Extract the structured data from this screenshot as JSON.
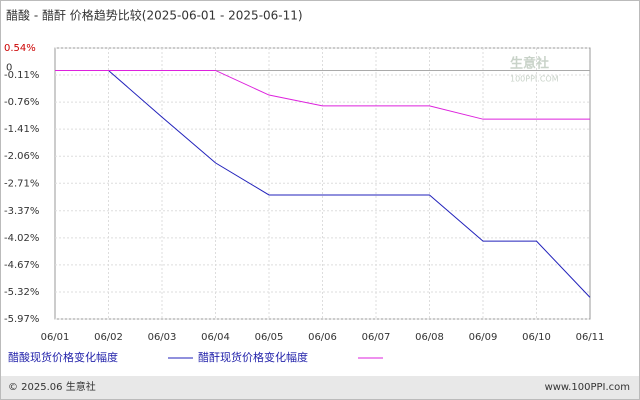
{
  "chart_data": {
    "type": "line",
    "title": "醋酸 - 醋酐 价格趋势比较(2025-06-01 - 2025-06-11)",
    "categories": [
      "06/01",
      "06/02",
      "06/03",
      "06/04",
      "06/05",
      "06/06",
      "06/07",
      "06/08",
      "06/09",
      "06/10",
      "06/11"
    ],
    "series": [
      {
        "name": "醋酸现货价格变化幅度",
        "color": "#2222bb",
        "values": [
          0,
          0,
          -1.12,
          -2.22,
          -2.99,
          -2.99,
          -2.99,
          -2.99,
          -4.1,
          -4.1,
          -5.45
        ]
      },
      {
        "name": "醋酐现货价格变化幅度",
        "color": "#dd22dd",
        "values": [
          0,
          0,
          0,
          0,
          -0.59,
          -0.85,
          -0.85,
          -0.85,
          -1.17,
          -1.17,
          -1.17
        ]
      }
    ],
    "ylim": [
      -5.97,
      0.54
    ],
    "yticks": [
      {
        "value": 0.54,
        "label": "0.54%"
      },
      0,
      {
        "value": -0.11,
        "label": "-0.11%"
      },
      {
        "value": -0.76,
        "label": "-0.76%"
      },
      {
        "value": -1.41,
        "label": "-1.41%"
      },
      {
        "value": -2.06,
        "label": "-2.06%"
      },
      {
        "value": -2.71,
        "label": "-2.71%"
      },
      {
        "value": -3.37,
        "label": "-3.37%"
      },
      {
        "value": -4.02,
        "label": "-4.02%"
      },
      {
        "value": -4.67,
        "label": "-4.67%"
      },
      {
        "value": -5.32,
        "label": "-5.32%"
      },
      {
        "value": -5.97,
        "label": "-5.97%"
      }
    ],
    "grid": true,
    "watermark": [
      "生意社",
      "100PPI.COM"
    ],
    "footer": [
      "© 2025.06 生意社",
      "www.100PPI.com"
    ]
  }
}
